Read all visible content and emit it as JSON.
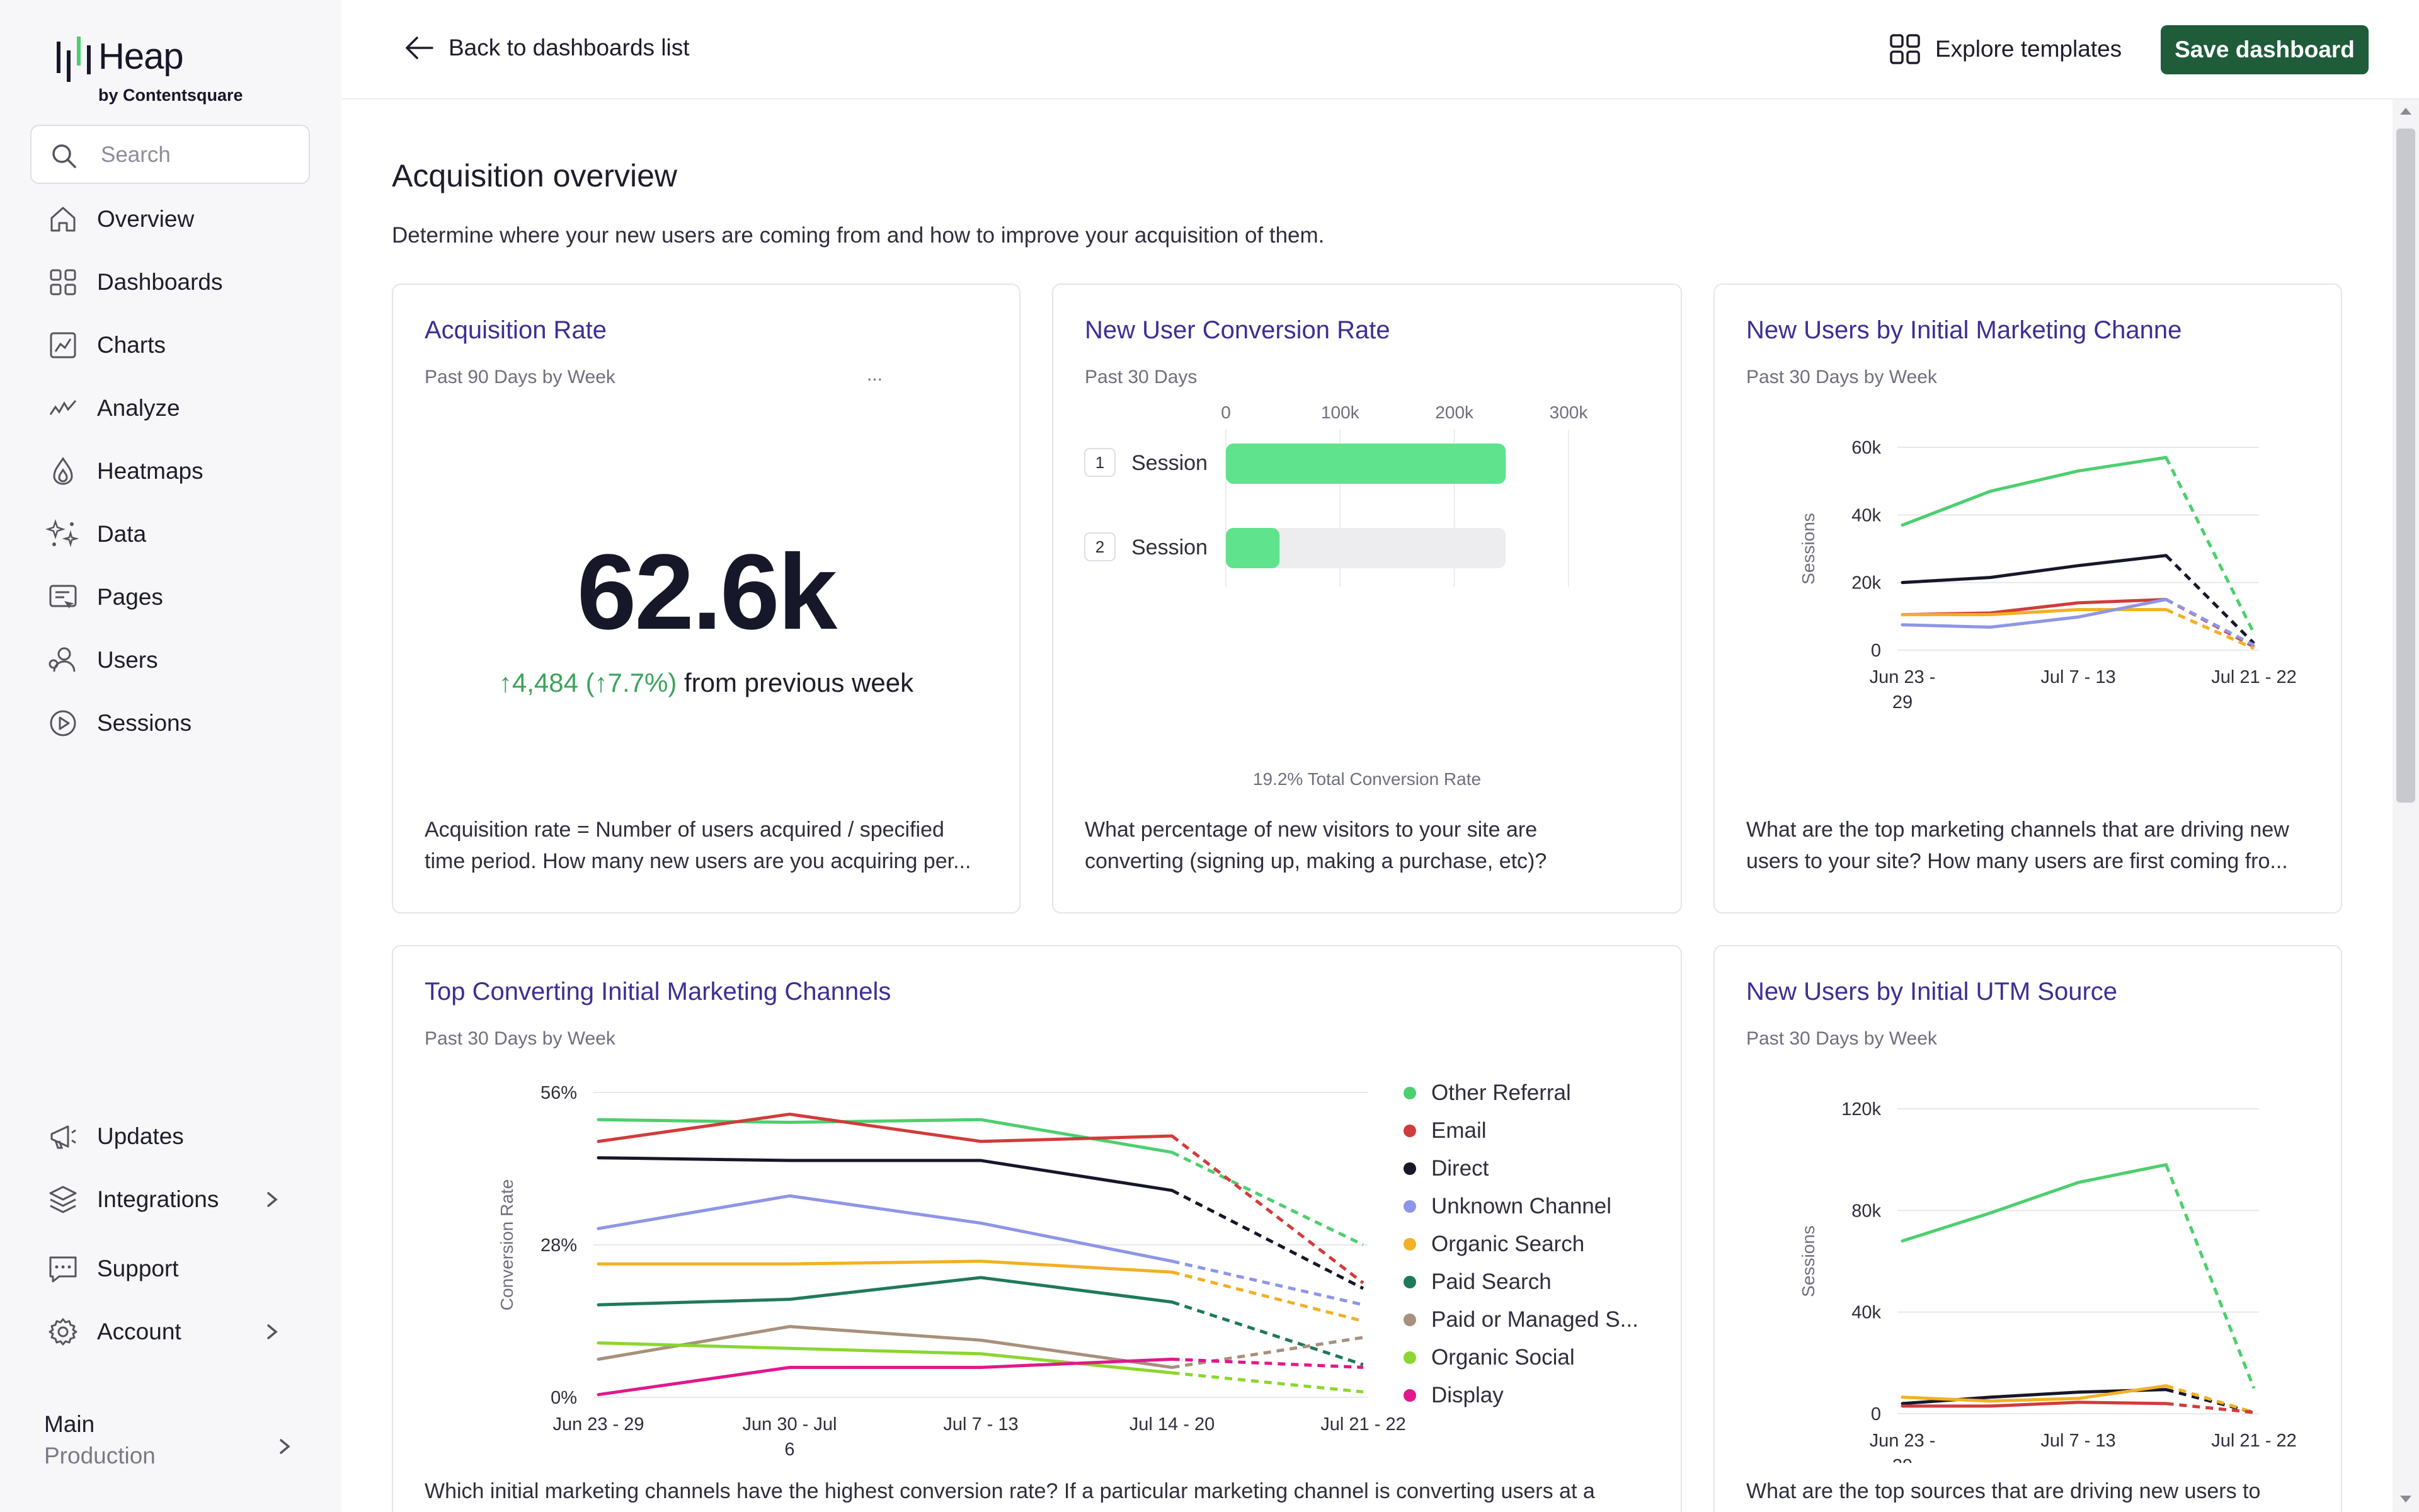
{
  "app": {
    "logo_name": "Heap",
    "logo_by": "by Contentsquare"
  },
  "sidebar": {
    "search_placeholder": "Search",
    "items": [
      {
        "label": "Overview",
        "icon": "home-icon"
      },
      {
        "label": "Dashboards",
        "icon": "dashboard-grid-icon"
      },
      {
        "label": "Charts",
        "icon": "chart-icon"
      },
      {
        "label": "Analyze",
        "icon": "analyze-icon"
      },
      {
        "label": "Heatmaps",
        "icon": "heatmap-icon"
      },
      {
        "label": "Data",
        "icon": "data-sparkle-icon"
      },
      {
        "label": "Pages",
        "icon": "pages-icon"
      },
      {
        "label": "Users",
        "icon": "users-icon"
      },
      {
        "label": "Sessions",
        "icon": "sessions-play-icon"
      }
    ],
    "bottom_items": [
      {
        "label": "Updates",
        "icon": "megaphone-icon"
      },
      {
        "label": "Integrations",
        "icon": "layers-icon"
      },
      {
        "label": "Support",
        "icon": "support-chat-icon"
      },
      {
        "label": "Account",
        "icon": "gear-icon"
      }
    ],
    "environment": {
      "name": "Main",
      "sub": "Production"
    }
  },
  "header": {
    "back_label": "Back to dashboards list",
    "explore_label": "Explore templates",
    "save_label": "Save dashboard"
  },
  "page": {
    "title": "Acquisition overview",
    "description": "Determine where your new users are coming from and how to improve your acquisition of them."
  },
  "colors": {
    "accent_title": "#3b2f93",
    "save_button": "#1f5c3a",
    "positive": "#3aa35b"
  },
  "cards": {
    "acquisition": {
      "title": "Acquisition Rate",
      "subtitle": "Past 90 Days by Week",
      "ellipsis": "...",
      "value": "62.6k",
      "delta": "↑4,484 (↑7.7%)",
      "delta_suffix": " from previous week",
      "foot_line1": "Acquisition rate = Number of users acquired / specified",
      "foot_line2": "time period. How many new users are you acquiring per..."
    },
    "conversion": {
      "title": "New User Conversion Rate",
      "subtitle": "Past 30 Days",
      "total_label": "19.2% Total Conversion Rate",
      "foot_line1": "What percentage of new visitors to your site are",
      "foot_line2": "converting (signing up, making a purchase, etc)?"
    },
    "marketing": {
      "title": "New Users by Initial Marketing Channe",
      "subtitle": "Past 30 Days by Week",
      "foot_line1": "What are the top marketing channels that are driving new",
      "foot_line2": "users to your site? How many users are first coming fro..."
    },
    "top_converting": {
      "title": "Top Converting Initial Marketing Channels",
      "subtitle": "Past 30 Days by Week",
      "foot_line1": "Which initial marketing channels have the highest conversion rate? If a particular marketing channel is converting users at a"
    },
    "utm": {
      "title": "New Users by Initial UTM Source",
      "subtitle": "Past 30 Days by Week",
      "foot_line1": "What are the top sources that are driving new users to"
    }
  },
  "chart_data": [
    {
      "id": "conversion-funnel",
      "type": "bar",
      "orientation": "horizontal",
      "categories": [
        "Session",
        "Session"
      ],
      "step_numbers": [
        "1",
        "2"
      ],
      "values": [
        245000,
        47000
      ],
      "baseline": 245000,
      "xlim": [
        0,
        300000
      ],
      "xticks": [
        "0",
        "100k",
        "200k",
        "300k"
      ],
      "bar_color": "#5fe38d",
      "track_color": "#ededf0",
      "title": "",
      "xlabel": "",
      "ylabel": ""
    },
    {
      "id": "marketing-channels",
      "type": "line",
      "categories": [
        "Jun 23 - 29",
        "Jun 30 - Jul 6",
        "Jul 7 - 13",
        "Jul 14 - 20",
        "Jul 21 - 22"
      ],
      "xtick_labels": [
        [
          "Jun 23 -",
          "29"
        ],
        [],
        [
          "Jul 7 - 13"
        ],
        [],
        [
          "Jul 21 - 22"
        ]
      ],
      "ylim": [
        0,
        60000
      ],
      "yticks": [
        "0",
        "20k",
        "40k",
        "60k"
      ],
      "ylabel": "Sessions",
      "title": "",
      "xlabel": "",
      "dashed_last_segment": true,
      "series": [
        {
          "color": "#4ccf6e",
          "values": [
            37000,
            47000,
            53000,
            57000,
            5000
          ]
        },
        {
          "color": "#17172a",
          "values": [
            20000,
            21500,
            25000,
            28000,
            2000
          ]
        },
        {
          "color": "#d23b3b",
          "values": [
            10500,
            11000,
            14000,
            15000,
            1000
          ]
        },
        {
          "color": "#f2b024",
          "values": [
            10500,
            10500,
            12000,
            12000,
            500
          ]
        },
        {
          "color": "#8d96e6",
          "values": [
            7500,
            6800,
            9800,
            15000,
            1500
          ]
        }
      ]
    },
    {
      "id": "top-converting",
      "type": "line",
      "categories": [
        "Jun 23 - 29",
        "Jun 30 - Jul 6",
        "Jul 7 - 13",
        "Jul 14 - 20",
        "Jul 21 - 22"
      ],
      "xtick_labels": [
        [
          "Jun 23 - 29"
        ],
        [
          "Jun 30 - Jul",
          "6"
        ],
        [
          "Jul 7 - 13"
        ],
        [
          "Jul 14 - 20"
        ],
        [
          "Jul 21 - 22"
        ]
      ],
      "ylim": [
        0,
        56
      ],
      "yticks": [
        "0%",
        "28%",
        "56%"
      ],
      "ylabel": "Conversion Rate",
      "title": "",
      "xlabel": "",
      "legend_position": "right",
      "dashed_last_segment": true,
      "series": [
        {
          "name": "Other Referral",
          "color": "#4ccf6e",
          "values": [
            51,
            50.5,
            51,
            45,
            28
          ]
        },
        {
          "name": "Email",
          "color": "#d23b3b",
          "values": [
            47,
            52,
            47,
            48,
            21
          ]
        },
        {
          "name": "Direct",
          "color": "#17172a",
          "values": [
            44,
            43.5,
            43.5,
            38,
            20
          ]
        },
        {
          "name": "Unknown Channel",
          "color": "#8d96e6",
          "values": [
            31,
            37,
            32,
            25,
            17
          ]
        },
        {
          "name": "Organic Search",
          "color": "#f2b024",
          "values": [
            24.5,
            24.5,
            25,
            23,
            14
          ]
        },
        {
          "name": "Paid Search",
          "color": "#1f7a5a",
          "values": [
            17,
            18,
            22,
            17.5,
            6
          ]
        },
        {
          "name": "Paid or Managed S...",
          "color": "#a8907c",
          "values": [
            7,
            13,
            10.5,
            5.5,
            11
          ]
        },
        {
          "name": "Organic Social",
          "color": "#8bd630",
          "values": [
            10,
            9,
            8,
            4.5,
            1
          ]
        },
        {
          "name": "Display",
          "color": "#e0188c",
          "values": [
            0.5,
            5.5,
            5.5,
            7,
            5.5
          ]
        }
      ]
    },
    {
      "id": "utm-source",
      "type": "line",
      "categories": [
        "Jun 23 - 29",
        "Jun 30 - Jul 6",
        "Jul 7 - 13",
        "Jul 14 - 20",
        "Jul 21 - 22"
      ],
      "xtick_labels": [
        [
          "Jun 23 -",
          "29"
        ],
        [],
        [
          "Jul 7 - 13"
        ],
        [],
        [
          "Jul 21 - 22"
        ]
      ],
      "ylim": [
        0,
        120000
      ],
      "yticks": [
        "0",
        "40k",
        "80k",
        "120k"
      ],
      "ylabel": "Sessions",
      "title": "",
      "xlabel": "",
      "dashed_last_segment": true,
      "series": [
        {
          "color": "#4ccf6e",
          "values": [
            68000,
            79000,
            91000,
            98000,
            10000
          ]
        },
        {
          "color": "#17172a",
          "values": [
            4000,
            6500,
            8500,
            9500,
            500
          ]
        },
        {
          "color": "#f2b024",
          "values": [
            6500,
            5000,
            6000,
            11000,
            500
          ]
        },
        {
          "color": "#d23b3b",
          "values": [
            3000,
            3000,
            4500,
            4000,
            500
          ]
        }
      ]
    }
  ]
}
